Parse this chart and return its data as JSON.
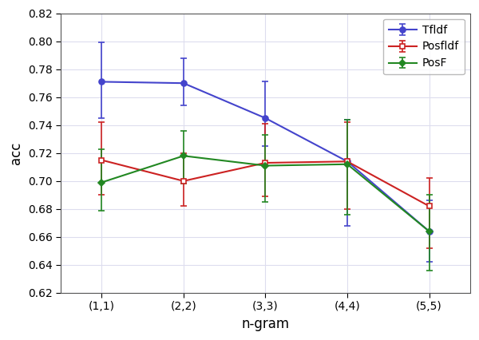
{
  "x_labels": [
    "(1,1)",
    "(2,2)",
    "(3,3)",
    "(4,4)",
    "(5,5)"
  ],
  "x_positions": [
    1,
    2,
    3,
    4,
    5
  ],
  "series": [
    {
      "name": "Tfldf",
      "color": "#4444cc",
      "marker": "o",
      "marker_fill": "#4444cc",
      "markersize": 5,
      "y": [
        0.771,
        0.77,
        0.745,
        0.714,
        0.664
      ],
      "yerr_upper": [
        0.028,
        0.018,
        0.026,
        0.03,
        0.022
      ],
      "yerr_lower": [
        0.026,
        0.016,
        0.02,
        0.046,
        0.022
      ]
    },
    {
      "name": "Posfldf",
      "color": "#cc2222",
      "marker": "s",
      "marker_fill": "white",
      "markersize": 5,
      "y": [
        0.715,
        0.7,
        0.713,
        0.714,
        0.682
      ],
      "yerr_upper": [
        0.027,
        0.02,
        0.028,
        0.028,
        0.02
      ],
      "yerr_lower": [
        0.025,
        0.018,
        0.024,
        0.034,
        0.03
      ]
    },
    {
      "name": "PosF",
      "color": "#228822",
      "marker": "D",
      "marker_fill": "#228822",
      "markersize": 4,
      "y": [
        0.699,
        0.718,
        0.711,
        0.712,
        0.664
      ],
      "yerr_upper": [
        0.024,
        0.018,
        0.022,
        0.032,
        0.026
      ],
      "yerr_lower": [
        0.02,
        0.02,
        0.026,
        0.036,
        0.028
      ]
    }
  ],
  "xlabel": "n-gram",
  "ylabel": "acc",
  "ylim": [
    0.62,
    0.82
  ],
  "yticks": [
    0.62,
    0.64,
    0.66,
    0.68,
    0.7,
    0.72,
    0.74,
    0.76,
    0.78,
    0.8,
    0.82
  ],
  "title": "",
  "grid_color": "#ddddee",
  "background_color": "#ffffff",
  "legend_loc": "upper right"
}
